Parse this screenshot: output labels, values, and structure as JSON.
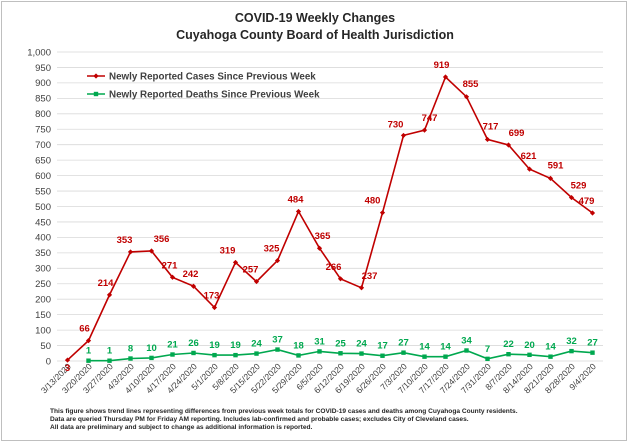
{
  "title": "COVID-19 Weekly Changes",
  "subtitle": "Cuyahoga County Board of Health Jurisdiction",
  "footnote": [
    "This figure shows trend lines representing differences from previous week totals for COVID-19 cases and deaths among Cuyahoga County residents.",
    "Data are queried Thursday PM for Friday AM reporting. Includes lab-confirmed and probable cases; excludes City of Cleveland cases.",
    "All data are preliminary and subject to change as additional information is reported."
  ],
  "colors": {
    "cases": "#c00000",
    "deaths": "#00a84f",
    "grid": "#d9d9d9"
  },
  "chart_data": {
    "type": "line",
    "title": "COVID-19 Weekly Changes",
    "subtitle": "Cuyahoga County Board of Health Jurisdiction",
    "xlabel": "",
    "ylabel": "",
    "ylim": [
      0,
      1000
    ],
    "yticks": [
      "0",
      "50",
      "100",
      "150",
      "200",
      "250",
      "300",
      "350",
      "400",
      "450",
      "500",
      "550",
      "600",
      "650",
      "700",
      "750",
      "800",
      "850",
      "900",
      "950",
      "1,000"
    ],
    "grid": true,
    "legend_position": "top-left",
    "categories": [
      "3/13/2020",
      "3/20/2020",
      "3/27/2020",
      "4/3/2020",
      "4/10/2020",
      "4/17/2020",
      "4/24/2020",
      "5/1/2020",
      "5/8/2020",
      "5/15/2020",
      "5/22/2020",
      "5/29/2020",
      "6/5/2020",
      "6/12/2020",
      "6/19/2020",
      "6/26/2020",
      "7/3/2020",
      "7/10/2020",
      "7/17/2020",
      "7/24/2020",
      "7/31/2020",
      "8/7/2020",
      "8/14/2020",
      "8/21/2020",
      "8/28/2020",
      "9/4/2020"
    ],
    "series": [
      {
        "name": "Newly Reported Cases Since Previous Week",
        "values": [
          3,
          66,
          214,
          353,
          356,
          271,
          242,
          173,
          319,
          257,
          325,
          484,
          365,
          266,
          237,
          480,
          730,
          747,
          919,
          855,
          717,
          699,
          621,
          591,
          529,
          479
        ],
        "labels": [
          "3",
          "66",
          "214",
          "353",
          "356",
          "271",
          "242",
          "173",
          "319",
          "257",
          "325",
          "484",
          "365",
          "266",
          "237",
          "480",
          "730",
          "747",
          "919",
          "855",
          "717",
          "699",
          "621",
          "591",
          "529",
          "479"
        ]
      },
      {
        "name": "Newly Reported Deaths Since Previous Week",
        "values": [
          null,
          1,
          1,
          8,
          10,
          21,
          26,
          19,
          19,
          24,
          37,
          18,
          31,
          25,
          24,
          17,
          27,
          14,
          14,
          34,
          7,
          22,
          20,
          14,
          32,
          27
        ],
        "labels": [
          "",
          "1",
          "1",
          "8",
          "10",
          "21",
          "26",
          "19",
          "19",
          "24",
          "37",
          "18",
          "31",
          "25",
          "24",
          "17",
          "27",
          "14",
          "14",
          "34",
          "7",
          "22",
          "20",
          "14",
          "32",
          "27"
        ]
      }
    ]
  }
}
